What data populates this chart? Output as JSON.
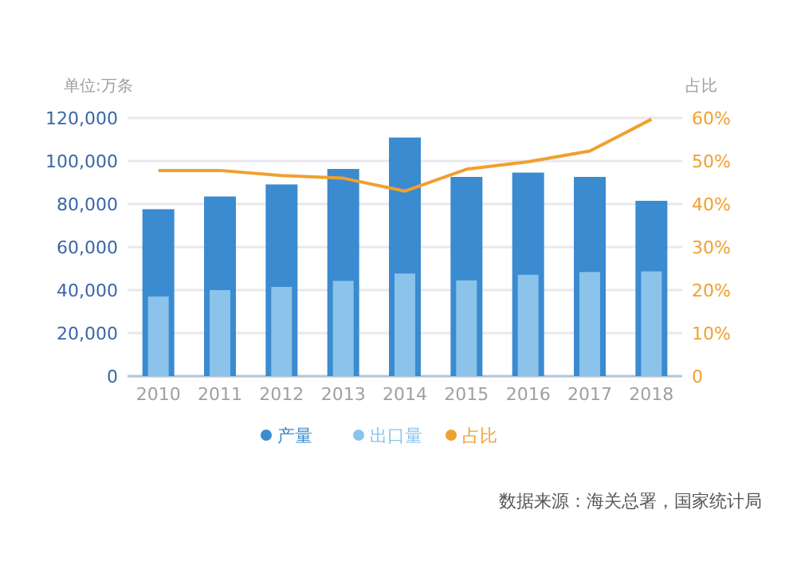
{
  "chart_data": {
    "type": "bar",
    "ylabel": "单位:万条",
    "y2label": "占比",
    "categories": [
      "2010",
      "2011",
      "2012",
      "2013",
      "2014",
      "2015",
      "2016",
      "2017",
      "2018"
    ],
    "series": [
      {
        "name": "产量",
        "color": "#3a8bd0",
        "values": [
          77600,
          83500,
          89100,
          96300,
          110900,
          92600,
          94600,
          92600,
          81500
        ]
      },
      {
        "name": "出口量",
        "color": "#8cc3ea",
        "values": [
          37000,
          40000,
          41500,
          44300,
          47700,
          44500,
          47100,
          48400,
          48700
        ]
      },
      {
        "name": "占比",
        "type": "line",
        "axis": "y2",
        "color": "#f0a030",
        "values": [
          47.8,
          47.8,
          46.6,
          46,
          43,
          48.1,
          49.8,
          52.3,
          59.7
        ]
      }
    ],
    "ylim": [
      0,
      120000
    ],
    "yticks": [
      {
        "value": 0,
        "label": "0"
      },
      {
        "value": 20000,
        "label": "20,000"
      },
      {
        "value": 40000,
        "label": "40,000"
      },
      {
        "value": 60000,
        "label": "60,000"
      },
      {
        "value": 80000,
        "label": "80,000"
      },
      {
        "value": 100000,
        "label": "100,000"
      },
      {
        "value": 120000,
        "label": "120,000"
      }
    ],
    "y2lim": [
      0,
      60
    ],
    "y2ticks": [
      {
        "value": 0,
        "label": "0"
      },
      {
        "value": 10,
        "label": "10%"
      },
      {
        "value": 20,
        "label": "20%"
      },
      {
        "value": 30,
        "label": "30%"
      },
      {
        "value": 40,
        "label": "40%"
      },
      {
        "value": 50,
        "label": "50%"
      },
      {
        "value": 60,
        "label": "60%"
      }
    ],
    "grid": "y",
    "legend": "bottom",
    "annotations": [
      "数据来源：海关总署，国家统计局"
    ]
  }
}
